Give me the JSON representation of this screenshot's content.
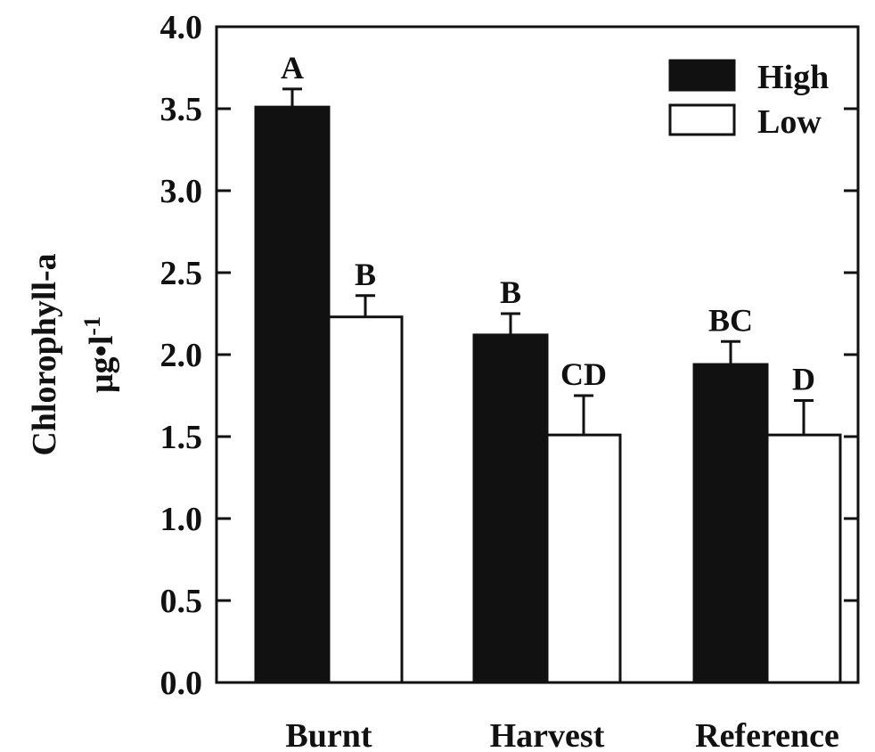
{
  "chart_data": {
    "type": "bar",
    "categories": [
      "Burnt",
      "Harvest",
      "Reference"
    ],
    "series": [
      {
        "name": "High",
        "color": "#111111",
        "values": [
          3.51,
          2.12,
          1.94
        ],
        "errors": [
          0.11,
          0.13,
          0.14
        ],
        "sig_labels": [
          "A",
          "B",
          "BC"
        ]
      },
      {
        "name": "Low",
        "color": "#ffffff",
        "values": [
          2.23,
          1.51,
          1.51
        ],
        "errors": [
          0.13,
          0.24,
          0.21
        ],
        "sig_labels": [
          "B",
          "CD",
          "D"
        ]
      }
    ],
    "ylabel_line1": "Chlorophyll-a",
    "ylabel_line2_main": "μg•l",
    "ylabel_line2_sup": "-1",
    "ylim": [
      0.0,
      4.0
    ],
    "yticks": [
      "0.0",
      "0.5",
      "1.0",
      "1.5",
      "2.0",
      "2.5",
      "3.0",
      "3.5",
      "4.0"
    ],
    "legend_position": "top-right",
    "grid": false
  }
}
